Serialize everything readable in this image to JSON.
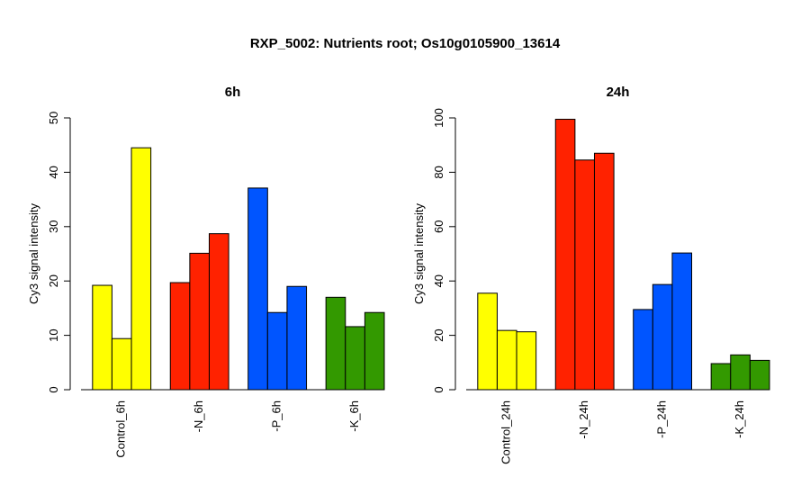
{
  "figure_title": "RXP_5002: Nutrients root; Os10g0105900_13614",
  "chart_data": [
    {
      "type": "bar",
      "title": "6h",
      "ylabel": "Cy3 signal intensity",
      "xlabel": "",
      "ylim": [
        0,
        50
      ],
      "yticks": [
        0,
        10,
        20,
        30,
        40,
        50
      ],
      "grid": false,
      "categories": [
        "Control_6h",
        "-N_6h",
        "-P_6h",
        "-K_6h"
      ],
      "group_colors": [
        "#ffff00",
        "#ff2200",
        "#0055ff",
        "#339900"
      ],
      "groups": [
        {
          "category": "Control_6h",
          "values": [
            19.2,
            9.4,
            44.5
          ]
        },
        {
          "category": "-N_6h",
          "values": [
            19.7,
            25.1,
            28.7
          ]
        },
        {
          "category": "-P_6h",
          "values": [
            37.1,
            14.2,
            19.0
          ]
        },
        {
          "category": "-K_6h",
          "values": [
            17.0,
            11.6,
            14.2
          ]
        }
      ]
    },
    {
      "type": "bar",
      "title": "24h",
      "ylabel": "Cy3 signal intensity",
      "xlabel": "",
      "ylim": [
        0,
        100
      ],
      "yticks": [
        0,
        20,
        40,
        60,
        80,
        100
      ],
      "grid": false,
      "categories": [
        "Control_24h",
        "-N_24h",
        "-P_24h",
        "-K_24h"
      ],
      "group_colors": [
        "#ffff00",
        "#ff2200",
        "#0055ff",
        "#339900"
      ],
      "groups": [
        {
          "category": "Control_24h",
          "values": [
            35.5,
            21.8,
            21.3
          ]
        },
        {
          "category": "-N_24h",
          "values": [
            99.5,
            84.5,
            87.0
          ]
        },
        {
          "category": "-P_24h",
          "values": [
            29.5,
            38.7,
            50.3
          ]
        },
        {
          "category": "-K_24h",
          "values": [
            9.6,
            12.8,
            10.8
          ]
        }
      ]
    }
  ]
}
